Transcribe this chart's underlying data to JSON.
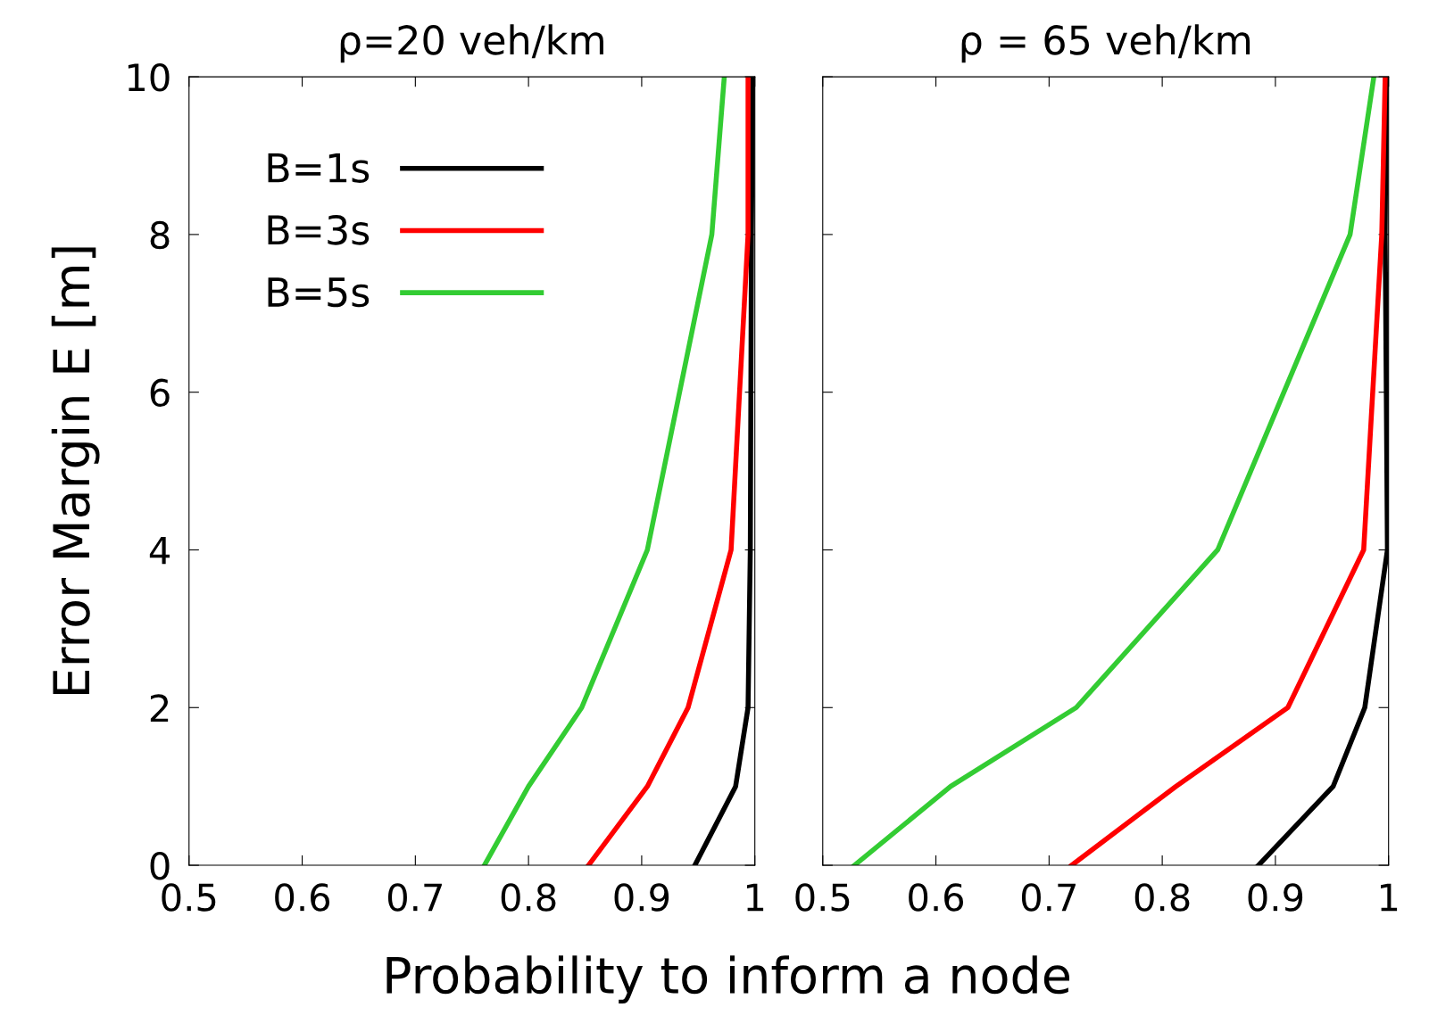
{
  "chart_data": [
    {
      "type": "line",
      "title": "ρ=20 veh/km",
      "xlabel": "Probability to inform a node",
      "ylabel": "Error Margin E [m]",
      "xlim": [
        0.5,
        1
      ],
      "xticks": [
        0.5,
        0.6,
        0.7,
        0.8,
        0.9,
        1
      ],
      "ylim": [
        0,
        10
      ],
      "yticks": [
        0,
        2,
        4,
        6,
        8,
        10
      ],
      "legend": "top left",
      "grid": false,
      "series": [
        {
          "name": "B=1s",
          "color": "#000000",
          "x": [
            0.947,
            0.983,
            0.994,
            0.996,
            0.997,
            0.998
          ],
          "values": [
            0,
            1,
            2,
            4,
            8,
            10
          ]
        },
        {
          "name": "B=3s",
          "color": "#ff0000",
          "x": [
            0.853,
            0.905,
            0.941,
            0.979,
            0.994,
            0.994
          ],
          "values": [
            0,
            1,
            2,
            4,
            8,
            10
          ]
        },
        {
          "name": "B=5s",
          "color": "#33cc33",
          "x": [
            0.761,
            0.8,
            0.847,
            0.905,
            0.962,
            0.973
          ],
          "values": [
            0,
            1,
            2,
            4,
            8,
            10
          ]
        }
      ]
    },
    {
      "type": "line",
      "title": "ρ = 65 veh/km",
      "xlim": [
        0.5,
        1
      ],
      "xticks": [
        0.5,
        0.6,
        0.7,
        0.8,
        0.9,
        1
      ],
      "ylim": [
        0,
        10
      ],
      "yticks": [
        0,
        2,
        4,
        6,
        8,
        10
      ],
      "tick_labels": "x",
      "grid": false,
      "series": [
        {
          "color": "#000000",
          "x": [
            0.885,
            0.951,
            0.979,
            0.999,
            0.997,
            0.998
          ],
          "values": [
            0,
            1,
            2,
            4,
            8,
            10
          ]
        },
        {
          "color": "#ff0000",
          "x": [
            0.72,
            0.812,
            0.911,
            0.978,
            0.994,
            0.997
          ],
          "values": [
            0,
            1,
            2,
            4,
            8,
            10
          ]
        },
        {
          "color": "#33cc33",
          "x": [
            0.528,
            0.613,
            0.724,
            0.849,
            0.966,
            0.987
          ],
          "values": [
            0,
            1,
            2,
            4,
            8,
            10
          ]
        }
      ]
    }
  ]
}
